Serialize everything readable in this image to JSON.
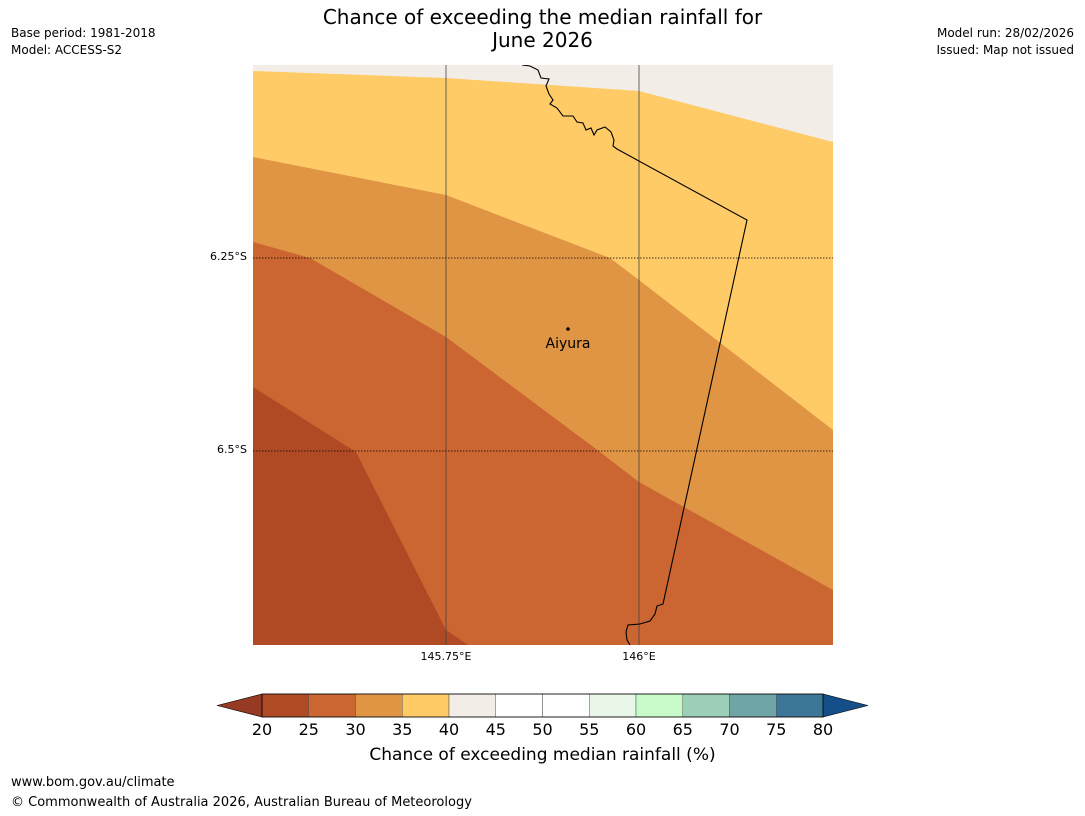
{
  "title": {
    "line1": "Chance of exceeding the median rainfall for",
    "line2": "June 2026"
  },
  "meta_left": {
    "base_period": "Base period: 1981-2018",
    "model": "Model: ACCESS-S2"
  },
  "meta_right": {
    "model_run": "Model run: 28/02/2026",
    "issued": "Issued: Map not issued"
  },
  "map": {
    "lat_labels": [
      "6.25°S",
      "6.5°S"
    ],
    "lon_labels": [
      "145.75°E",
      "146°E"
    ],
    "location": {
      "name": "Aiyura"
    }
  },
  "colorbar": {
    "ticks": [
      "20",
      "25",
      "30",
      "35",
      "40",
      "45",
      "50",
      "55",
      "60",
      "65",
      "70",
      "75",
      "80"
    ],
    "colors": [
      "#b04a25",
      "#cb6531",
      "#e09545",
      "#fecb67",
      "#f2ede7",
      "#ffffff",
      "#ffffff",
      "#e8f7e8",
      "#c8fbc9",
      "#9ccfb7",
      "#6fa5a5",
      "#3c7797"
    ],
    "low_extend_color": "#973a23",
    "high_extend_color": "#154f8a",
    "label": "Chance of exceeding median rainfall (%)"
  },
  "footer": {
    "url": "www.bom.gov.au/climate",
    "copyright": "© Commonwealth of Australia 2026, Australian Bureau of Meteorology"
  }
}
